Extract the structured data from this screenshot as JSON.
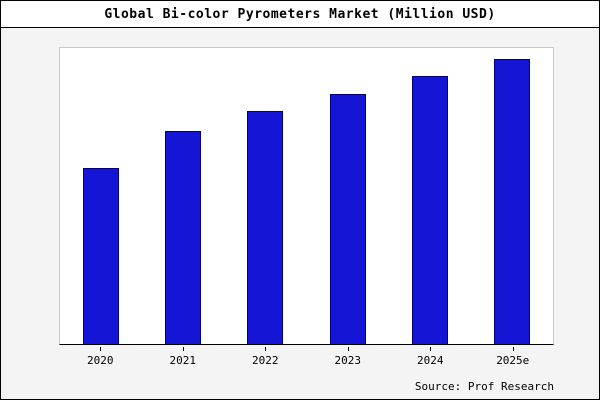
{
  "title": "Global Bi-color Pyrometers Market (Million USD)",
  "source": "Source: Prof Research",
  "colors": {
    "bar_fill": "#1515d6",
    "bar_border": "#000080",
    "frame_border": "#000000",
    "plot_bg": "#ffffff",
    "margin_bg": "#f4f4f4"
  },
  "chart_data": {
    "type": "bar",
    "categories": [
      "2020",
      "2021",
      "2022",
      "2023",
      "2024",
      "2025e"
    ],
    "values": [
      62,
      75,
      82,
      88,
      94,
      100
    ],
    "title": "Global Bi-color Pyrometers Market (Million USD)",
    "xlabel": "",
    "ylabel": "",
    "ylim": [
      0,
      104
    ],
    "grid": false,
    "legend": false,
    "source_annotation": "Source: Prof Research"
  }
}
